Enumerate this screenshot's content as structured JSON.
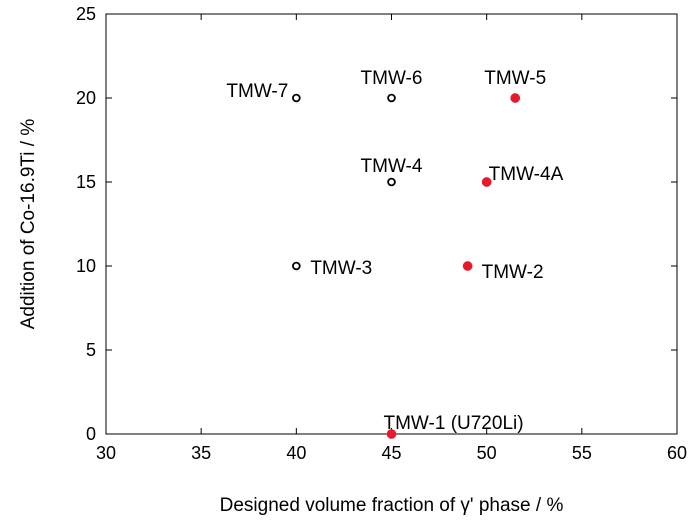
{
  "chart_data": {
    "type": "scatter",
    "title": "",
    "xlabel": "Designed volume fraction of γ' phase / %",
    "ylabel": "Addition of Co-16.9Ti / %",
    "xlim": [
      30,
      60
    ],
    "ylim": [
      0,
      25
    ],
    "xticks": [
      "30",
      "35",
      "40",
      "45",
      "50",
      "55",
      "60"
    ],
    "yticks": [
      "0",
      "5",
      "10",
      "15",
      "20",
      "25"
    ],
    "grid": false,
    "series": [
      {
        "marker": "open-circle",
        "color": "#000000",
        "points": [
          {
            "label": "TMW-7",
            "x": 40,
            "y": 20
          },
          {
            "label": "TMW-6",
            "x": 45,
            "y": 20
          },
          {
            "label": "TMW-4",
            "x": 45,
            "y": 15
          },
          {
            "label": "TMW-3",
            "x": 40,
            "y": 10
          }
        ]
      },
      {
        "marker": "filled-circle",
        "color": "#e8192c",
        "points": [
          {
            "label": "TMW-5",
            "x": 51.5,
            "y": 20
          },
          {
            "label": "TMW-4A",
            "x": 50,
            "y": 15
          },
          {
            "label": "TMW-2",
            "x": 49,
            "y": 10
          },
          {
            "label": "TMW-1 (U720Li)",
            "x": 45,
            "y": 0
          }
        ]
      }
    ]
  }
}
